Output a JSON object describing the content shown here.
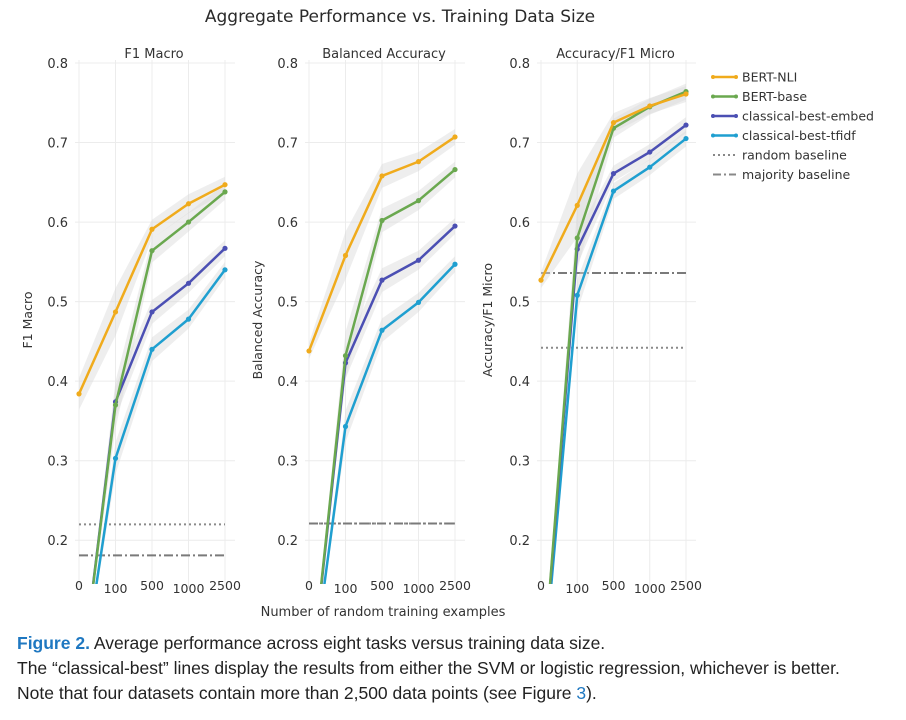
{
  "figure": {
    "suptitle": "Aggregate Performance vs. Training Data Size",
    "xlabel": "Number of random training examples"
  },
  "caption": {
    "label": "Figure 2.",
    "line1": "Average performance across eight tasks versus training data size.",
    "line2": "The “classical-best” lines display the results from either the SVM or logistic regression, whichever is better.",
    "line3_before": "Note that four datasets contain more than 2,500 data points (see Figure ",
    "line3_ref": "3",
    "line3_after": ")."
  },
  "legend": [
    {
      "label": "BERT-NLI",
      "color": "#f0ab1c",
      "style": "solid-marker"
    },
    {
      "label": "BERT-base",
      "color": "#6aa84f",
      "style": "solid-marker"
    },
    {
      "label": "classical-best-embed",
      "color": "#4b4fb3",
      "style": "solid-marker"
    },
    {
      "label": "classical-best-tfidf",
      "color": "#1f9fd0",
      "style": "solid-marker"
    },
    {
      "label": "random baseline",
      "color": "#888888",
      "style": "dotted"
    },
    {
      "label": "majority baseline",
      "color": "#888888",
      "style": "dashdot"
    }
  ],
  "chart_data": [
    {
      "type": "line",
      "title": "F1 Macro",
      "ylabel": "F1 Macro",
      "xlabel": "",
      "x": [
        0,
        100,
        500,
        1000,
        2500
      ],
      "x_tick_labels": [
        "0",
        "100",
        "500",
        "1000",
        "2500"
      ],
      "ylim": [
        0.15,
        0.8
      ],
      "y_ticks": [
        0.2,
        0.3,
        0.4,
        0.5,
        0.6,
        0.7,
        0.8
      ],
      "y_tick_labels": [
        "0.2",
        "0.3",
        "0.4",
        "0.5",
        "0.6",
        "0.7",
        "0.8"
      ],
      "grid": true,
      "series": [
        {
          "name": "BERT-NLI",
          "values": [
            0.384,
            0.487,
            0.591,
            0.623,
            0.647
          ],
          "band": [
            0.02,
            0.03,
            0.012,
            0.012,
            0.01
          ]
        },
        {
          "name": "BERT-base",
          "values": [
            0.0,
            0.37,
            0.564,
            0.6,
            0.638
          ],
          "band": [
            0.0,
            0.03,
            0.015,
            0.012,
            0.01
          ]
        },
        {
          "name": "classical-best-embed",
          "values": [
            0.0,
            0.374,
            0.487,
            0.523,
            0.567
          ],
          "band": [
            0.0,
            0.02,
            0.015,
            0.012,
            0.01
          ]
        },
        {
          "name": "classical-best-tfidf",
          "values": [
            0.0,
            0.303,
            0.44,
            0.478,
            0.54
          ],
          "band": [
            0.0,
            0.02,
            0.015,
            0.012,
            0.01
          ]
        }
      ],
      "baselines": {
        "random baseline": 0.22,
        "majority baseline": 0.181
      }
    },
    {
      "type": "line",
      "title": "Balanced Accuracy",
      "ylabel": "Balanced Accuracy",
      "xlabel": "",
      "x": [
        0,
        100,
        500,
        1000,
        2500
      ],
      "x_tick_labels": [
        "0",
        "100",
        "500",
        "1000",
        "2500"
      ],
      "ylim": [
        0.15,
        0.8
      ],
      "y_ticks": [
        0.2,
        0.3,
        0.4,
        0.5,
        0.6,
        0.7,
        0.8
      ],
      "y_tick_labels": [
        "0.2",
        "0.3",
        "0.4",
        "0.5",
        "0.6",
        "0.7",
        "0.8"
      ],
      "grid": true,
      "series": [
        {
          "name": "BERT-NLI",
          "values": [
            0.438,
            0.558,
            0.658,
            0.676,
            0.707
          ],
          "band": [
            0.01,
            0.03,
            0.015,
            0.012,
            0.01
          ]
        },
        {
          "name": "BERT-base",
          "values": [
            0.0,
            0.432,
            0.602,
            0.627,
            0.666
          ],
          "band": [
            0.0,
            0.03,
            0.015,
            0.012,
            0.01
          ]
        },
        {
          "name": "classical-best-embed",
          "values": [
            0.0,
            0.423,
            0.527,
            0.552,
            0.595
          ],
          "band": [
            0.0,
            0.02,
            0.015,
            0.012,
            0.01
          ]
        },
        {
          "name": "classical-best-tfidf",
          "values": [
            0.0,
            0.343,
            0.464,
            0.499,
            0.547
          ],
          "band": [
            0.0,
            0.02,
            0.015,
            0.012,
            0.01
          ]
        }
      ],
      "baselines": {
        "random baseline": 0.221,
        "majority baseline": 0.221
      }
    },
    {
      "type": "line",
      "title": "Accuracy/F1 Micro",
      "ylabel": "Accuracy/F1 Micro",
      "xlabel": "",
      "x": [
        0,
        100,
        500,
        1000,
        2500
      ],
      "x_tick_labels": [
        "0",
        "100",
        "500",
        "1000",
        "2500"
      ],
      "ylim": [
        0.15,
        0.8
      ],
      "y_ticks": [
        0.2,
        0.3,
        0.4,
        0.5,
        0.6,
        0.7,
        0.8
      ],
      "y_tick_labels": [
        "0.2",
        "0.3",
        "0.4",
        "0.5",
        "0.6",
        "0.7",
        "0.8"
      ],
      "grid": true,
      "series": [
        {
          "name": "BERT-NLI",
          "values": [
            0.527,
            0.621,
            0.725,
            0.746,
            0.761
          ],
          "band": [
            0.01,
            0.04,
            0.012,
            0.01,
            0.01
          ]
        },
        {
          "name": "BERT-base",
          "values": [
            0.0,
            0.58,
            0.718,
            0.745,
            0.764
          ],
          "band": [
            0.0,
            0.04,
            0.012,
            0.01,
            0.01
          ]
        },
        {
          "name": "classical-best-embed",
          "values": [
            0.0,
            0.566,
            0.661,
            0.688,
            0.722
          ],
          "band": [
            0.0,
            0.02,
            0.01,
            0.01,
            0.01
          ]
        },
        {
          "name": "classical-best-tfidf",
          "values": [
            0.0,
            0.508,
            0.639,
            0.669,
            0.705
          ],
          "band": [
            0.0,
            0.02,
            0.01,
            0.01,
            0.01
          ]
        }
      ],
      "baselines": {
        "random baseline": 0.442,
        "majority baseline": 0.536
      }
    }
  ]
}
